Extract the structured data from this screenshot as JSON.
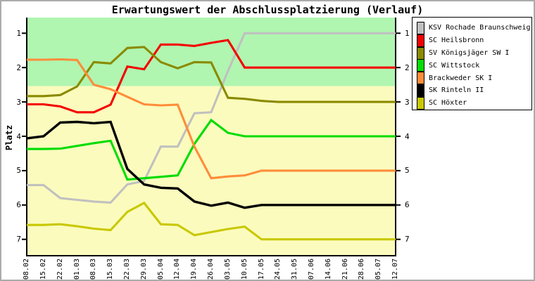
{
  "chart_data": {
    "type": "line",
    "title": "Erwartungswert der Abschlussplatzierung (Verlauf)",
    "ylabel": "Platz",
    "y_ticks": [
      1,
      2,
      3,
      4,
      5,
      6,
      7
    ],
    "y_inverted": true,
    "ylim": [
      0.55,
      7.48
    ],
    "grid": false,
    "legend_position": "right-outside",
    "zones": {
      "cutoff": 2.54,
      "top_color": "#b0f5b0",
      "bottom_color": "#fbfbbd"
    },
    "axis_color": "#000000",
    "x": [
      "08.02",
      "15.02",
      "22.02",
      "01.03",
      "08.03",
      "15.03",
      "22.03",
      "29.03",
      "05.04",
      "12.04",
      "19.04",
      "26.04",
      "03.05",
      "10.05",
      "17.05",
      "24.05",
      "31.05",
      "07.06",
      "14.06",
      "21.06",
      "28.06",
      "05.07",
      "12.07"
    ],
    "series": [
      {
        "name": "KSV Rochade Braunschweig",
        "color": "#c0c0c0",
        "values": [
          5.42,
          5.42,
          5.8,
          5.85,
          5.9,
          5.93,
          5.4,
          5.3,
          4.3,
          4.3,
          3.33,
          3.3,
          2.1,
          1.0,
          1.0,
          1.0,
          1.0,
          1.0,
          1.0,
          1.0,
          1.0,
          1.0,
          1.0
        ]
      },
      {
        "name": "SC Heilsbronn",
        "color": "#f40000",
        "values": [
          3.07,
          3.07,
          3.13,
          3.3,
          3.3,
          3.08,
          1.97,
          2.05,
          1.33,
          1.33,
          1.37,
          1.28,
          1.2,
          2.0,
          2.0,
          2.0,
          2.0,
          2.0,
          2.0,
          2.0,
          2.0,
          2.0,
          2.0
        ]
      },
      {
        "name": "SV Königsjäger SW I",
        "color": "#8a8a00",
        "values": [
          2.83,
          2.83,
          2.8,
          2.55,
          1.84,
          1.88,
          1.43,
          1.4,
          1.84,
          2.02,
          1.84,
          1.85,
          2.88,
          2.91,
          2.97,
          3.0,
          3.0,
          3.0,
          3.0,
          3.0,
          3.0,
          3.0,
          3.0
        ]
      },
      {
        "name": "SC Wittstock",
        "color": "#00dc00",
        "values": [
          4.37,
          4.37,
          4.36,
          4.28,
          4.2,
          4.13,
          5.26,
          5.22,
          5.18,
          5.14,
          4.22,
          3.53,
          3.9,
          4.0,
          4.0,
          4.0,
          4.0,
          4.0,
          4.0,
          4.0,
          4.0,
          4.0,
          4.0
        ]
      },
      {
        "name": "Brackweder SK I",
        "color": "#ff8c3a",
        "values": [
          1.77,
          1.77,
          1.76,
          1.78,
          2.5,
          2.63,
          2.85,
          3.07,
          3.1,
          3.08,
          4.3,
          5.22,
          5.17,
          5.14,
          5.0,
          5.0,
          5.0,
          5.0,
          5.0,
          5.0,
          5.0,
          5.0,
          5.0
        ]
      },
      {
        "name": "SK Rinteln II",
        "color": "#000000",
        "values": [
          4.06,
          4.0,
          3.6,
          3.58,
          3.62,
          3.58,
          4.95,
          5.4,
          5.5,
          5.52,
          5.9,
          6.02,
          5.93,
          6.08,
          6.0,
          6.0,
          6.0,
          6.0,
          6.0,
          6.0,
          6.0,
          6.0,
          6.0
        ]
      },
      {
        "name": "SC Höxter",
        "color": "#c8c800",
        "values": [
          6.58,
          6.58,
          6.56,
          6.62,
          6.69,
          6.73,
          6.2,
          5.94,
          6.56,
          6.58,
          6.88,
          6.79,
          6.7,
          6.63,
          7.0,
          7.0,
          7.0,
          7.0,
          7.0,
          7.0,
          7.0,
          7.0,
          7.0
        ]
      }
    ]
  }
}
